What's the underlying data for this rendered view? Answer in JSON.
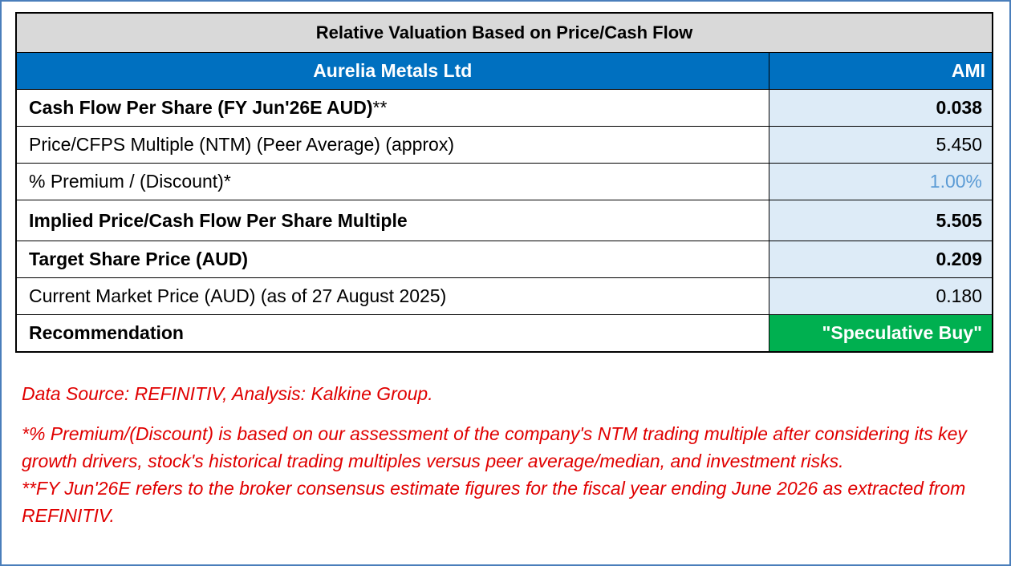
{
  "table": {
    "title": "Relative Valuation Based on Price/Cash Flow",
    "company": "Aurelia Metals Ltd",
    "ticker": "AMI",
    "rows": [
      {
        "label": "Cash Flow Per Share (FY Jun'26E AUD)",
        "suffix": "**",
        "value": "0.038"
      },
      {
        "label": "Price/CFPS Multiple (NTM) (Peer Average) (approx)",
        "value": "5.450"
      },
      {
        "label": "% Premium / (Discount)*",
        "value": "1.00%"
      },
      {
        "label": "Implied Price/Cash Flow Per Share Multiple",
        "value": "5.505"
      },
      {
        "label": "Target Share Price (AUD)",
        "value": "0.209"
      },
      {
        "label": "Current Market Price (AUD) (as of 27 August 2025)",
        "value": "0.180"
      },
      {
        "label": "Recommendation",
        "value": "\"Speculative Buy\""
      }
    ]
  },
  "notes": {
    "source": "Data Source: REFINITIV, Analysis: Kalkine Group.",
    "note1": "*% Premium/(Discount) is based on our assessment of the company's NTM trading multiple after considering its key growth drivers, stock's historical trading multiples versus peer average/median, and investment risks.",
    "note2": "**FY Jun'26E refers to the broker consensus estimate figures for the fiscal year ending June 2026 as extracted from REFINITIV."
  },
  "colors": {
    "header_blue": "#0070c0",
    "value_bg": "#ddebf7",
    "title_bg": "#d9d9d9",
    "recommendation_green": "#00b050",
    "note_red": "#e00000"
  }
}
